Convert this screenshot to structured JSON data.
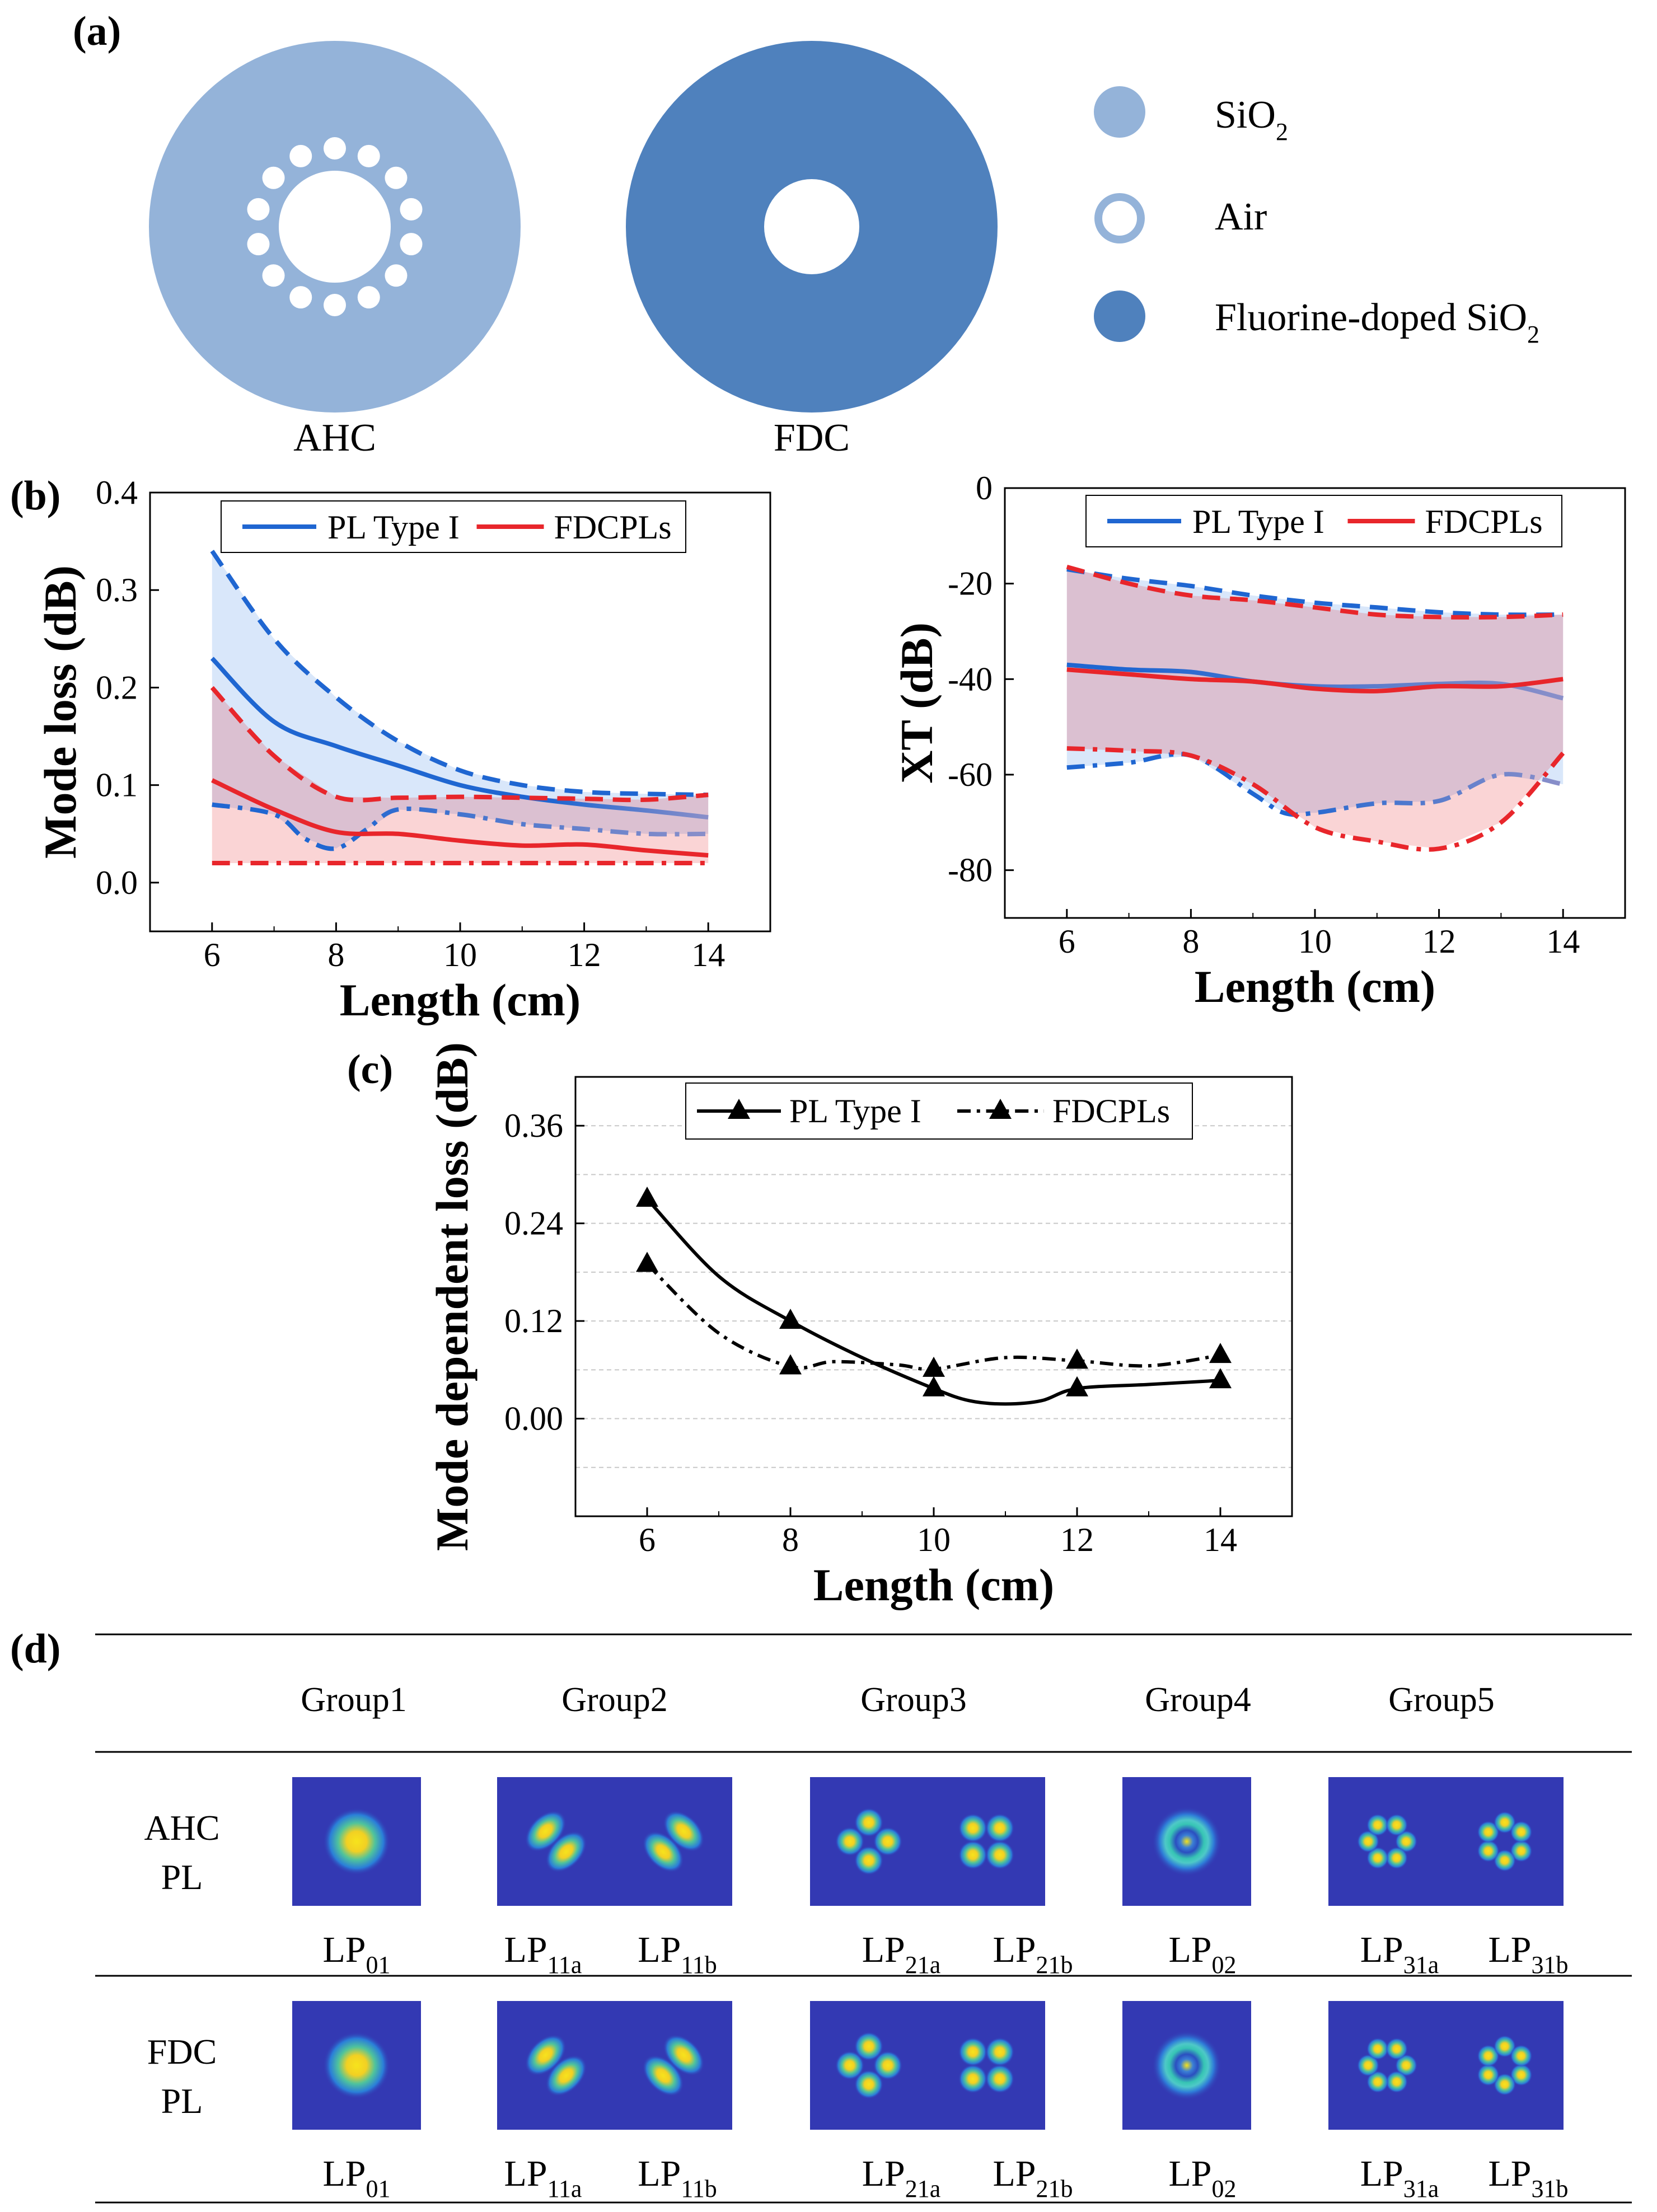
{
  "panel_labels": {
    "a": "(a)",
    "b": "(b)",
    "c": "(c)",
    "d": "(d)"
  },
  "panel_a": {
    "ahc_label": "AHC",
    "fdc_label": "FDC",
    "legend": [
      {
        "label": "SiO",
        "sub": "2",
        "color": "#94b3d9",
        "style": "filled"
      },
      {
        "label": "Air",
        "sub": "",
        "color": "#94b3d9",
        "style": "ring"
      },
      {
        "label": "Fluorine-doped SiO",
        "sub": "2",
        "color": "#4f81bd",
        "style": "filled"
      }
    ],
    "colors": {
      "sio2": "#94b3d9",
      "fdc": "#4f81bd",
      "air": "#ffffff"
    }
  },
  "chart_data": [
    {
      "id": "b-left",
      "type": "line",
      "title": "",
      "xlabel": "Length (cm)",
      "ylabel": "Mode loss (dB)",
      "xlim": [
        5,
        15
      ],
      "ylim": [
        -0.05,
        0.4
      ],
      "xticks": [
        6,
        8,
        10,
        12,
        14
      ],
      "yticks": [
        0.0,
        0.1,
        0.2,
        0.3,
        0.4
      ],
      "ytick_labels": [
        "0.0",
        "0.1",
        "0.2",
        "0.3",
        "0.4"
      ],
      "legend": [
        "PL Type I",
        "FDCPLs"
      ],
      "series": [
        {
          "name": "PL Type I max",
          "color": "#1f66d1",
          "dash": "dash",
          "x": [
            6,
            7,
            8,
            9,
            10,
            11,
            12,
            13,
            14
          ],
          "values": [
            0.34,
            0.25,
            0.19,
            0.145,
            0.115,
            0.1,
            0.093,
            0.091,
            0.09
          ]
        },
        {
          "name": "PL Type I mean",
          "color": "#1f66d1",
          "dash": "solid",
          "fade_to": "#8a8fc9",
          "fade_from": 11.5,
          "x": [
            6,
            7,
            8,
            9,
            10,
            11,
            12,
            13,
            14
          ],
          "values": [
            0.23,
            0.165,
            0.14,
            0.12,
            0.1,
            0.088,
            0.08,
            0.074,
            0.067
          ]
        },
        {
          "name": "PL Type I min",
          "color": "#1f66d1",
          "dash": "dashdot",
          "fade_to": "#8a8fc9",
          "fade_from": 8,
          "x": [
            6,
            7,
            7.5,
            8,
            8.5,
            9,
            10,
            11,
            12,
            13,
            14
          ],
          "values": [
            0.08,
            0.07,
            0.045,
            0.035,
            0.055,
            0.075,
            0.07,
            0.06,
            0.055,
            0.05,
            0.05
          ]
        },
        {
          "name": "FDCPLs max",
          "color": "#e8262b",
          "dash": "dash",
          "x": [
            6,
            7,
            8,
            9,
            10,
            11,
            12,
            13,
            14
          ],
          "values": [
            0.2,
            0.13,
            0.088,
            0.087,
            0.088,
            0.087,
            0.086,
            0.085,
            0.09
          ]
        },
        {
          "name": "FDCPLs mean",
          "color": "#e8262b",
          "dash": "solid",
          "x": [
            6,
            7,
            8,
            9,
            10,
            11,
            12,
            13,
            14
          ],
          "values": [
            0.105,
            0.075,
            0.052,
            0.05,
            0.043,
            0.038,
            0.039,
            0.033,
            0.028
          ]
        },
        {
          "name": "FDCPLs min",
          "color": "#e8262b",
          "dash": "dashdot",
          "x": [
            6,
            8,
            10,
            12,
            14
          ],
          "values": [
            0.02,
            0.02,
            0.02,
            0.02,
            0.02
          ]
        }
      ]
    },
    {
      "id": "b-right",
      "type": "line",
      "title": "",
      "xlabel": "Length (cm)",
      "ylabel": "XT (dB)",
      "xlim": [
        5,
        15
      ],
      "ylim": [
        -90,
        0
      ],
      "xticks": [
        6,
        8,
        10,
        12,
        14
      ],
      "yticks": [
        -80,
        -60,
        -40,
        -20,
        0
      ],
      "ytick_labels": [
        "-80",
        "-60",
        "-40",
        "-20",
        "0"
      ],
      "legend": [
        "PL Type I",
        "FDCPLs"
      ],
      "series": [
        {
          "name": "PL Type I max",
          "color": "#1f66d1",
          "dash": "dash",
          "x": [
            6,
            7,
            8,
            9,
            10,
            11,
            12,
            13,
            14
          ],
          "values": [
            -17,
            -19,
            -20.5,
            -22.5,
            -24,
            -25,
            -26,
            -26.5,
            -26.5
          ]
        },
        {
          "name": "PL Type I mean",
          "color": "#1f66d1",
          "dash": "solid",
          "fade_to": "#8a8fc9",
          "fade_from": 7,
          "x": [
            6,
            7,
            8,
            9,
            10,
            11,
            12,
            13,
            14
          ],
          "values": [
            -37,
            -38,
            -38.5,
            -40.5,
            -41.5,
            -41.5,
            -41,
            -41,
            -44
          ]
        },
        {
          "name": "PL Type I min",
          "color": "#1f66d1",
          "dash": "dashdot",
          "fade_to": "#8a8fc9",
          "fade_from": 9.5,
          "x": [
            6,
            7,
            8,
            9,
            9.5,
            10,
            11,
            12,
            13,
            14
          ],
          "values": [
            -58.5,
            -57.5,
            -56,
            -64,
            -68,
            -68,
            -66,
            -65.5,
            -60,
            -62
          ]
        },
        {
          "name": "FDCPLs max",
          "color": "#e8262b",
          "dash": "dash",
          "x": [
            6,
            7,
            8,
            9,
            10,
            11,
            12,
            13,
            14
          ],
          "values": [
            -16.5,
            -20,
            -22.5,
            -23.5,
            -25,
            -26.5,
            -27,
            -27,
            -26.5
          ]
        },
        {
          "name": "FDCPLs mean",
          "color": "#e8262b",
          "dash": "solid",
          "x": [
            6,
            7,
            8,
            9,
            10,
            11,
            12,
            13,
            14
          ],
          "values": [
            -38,
            -39,
            -40,
            -40.5,
            -42,
            -42.5,
            -41.5,
            -41.5,
            -40
          ]
        },
        {
          "name": "FDCPLs min",
          "color": "#e8262b",
          "dash": "dashdot",
          "x": [
            6,
            7,
            8,
            9,
            10,
            11,
            12,
            13,
            14
          ],
          "values": [
            -54.5,
            -55,
            -56,
            -62,
            -71,
            -74,
            -75.5,
            -70,
            -55.5
          ]
        }
      ]
    },
    {
      "id": "c",
      "type": "line",
      "title": "",
      "xlabel": "Length (cm)",
      "ylabel": "Mode dependent loss (dB)",
      "xlim": [
        5,
        15
      ],
      "ylim": [
        -0.12,
        0.42
      ],
      "xticks": [
        6,
        8,
        10,
        12,
        14
      ],
      "yticks": [
        0.0,
        0.12,
        0.24,
        0.36
      ],
      "ytick_labels": [
        "0.00",
        "0.12",
        "0.24",
        "0.36"
      ],
      "grid_y": [
        -0.12,
        -0.06,
        0.0,
        0.06,
        0.12,
        0.18,
        0.24,
        0.3,
        0.36
      ],
      "legend": [
        "PL Type I",
        "FDCPLs"
      ],
      "series": [
        {
          "name": "PL Type I",
          "color": "#000000",
          "dash": "solid",
          "marker": "triangle",
          "x": [
            6,
            8,
            10,
            12,
            14
          ],
          "values": [
            0.27,
            0.12,
            0.037,
            0.037,
            0.047
          ],
          "curve_x": [
            6,
            7,
            8,
            9,
            10,
            10.5,
            11,
            11.5,
            12,
            13,
            14
          ],
          "curve_values": [
            0.27,
            0.175,
            0.12,
            0.075,
            0.037,
            0.022,
            0.018,
            0.022,
            0.037,
            0.042,
            0.047
          ]
        },
        {
          "name": "FDCPLs",
          "color": "#000000",
          "dash": "dashdot",
          "marker": "triangle",
          "x": [
            6,
            8,
            10,
            12,
            14
          ],
          "values": [
            0.19,
            0.064,
            0.061,
            0.071,
            0.078
          ],
          "curve_x": [
            6,
            7,
            8,
            8.6,
            9.5,
            10,
            11,
            12,
            13,
            14
          ],
          "curve_values": [
            0.19,
            0.105,
            0.064,
            0.07,
            0.066,
            0.061,
            0.075,
            0.071,
            0.065,
            0.078
          ]
        }
      ]
    }
  ],
  "panel_d": {
    "groups": [
      "Group1",
      "Group2",
      "Group3",
      "Group4",
      "Group5"
    ],
    "rows": [
      {
        "label_line1": "AHC",
        "label_line2": "PL",
        "modes": [
          {
            "base": "LP",
            "sub": "01"
          },
          {
            "base": "LP",
            "sub": "11a"
          },
          {
            "base": "LP",
            "sub": "11b"
          },
          {
            "base": "LP",
            "sub": "21a"
          },
          {
            "base": "LP",
            "sub": "21b"
          },
          {
            "base": "LP",
            "sub": "02"
          },
          {
            "base": "LP",
            "sub": "31a"
          },
          {
            "base": "LP",
            "sub": "31b"
          }
        ]
      },
      {
        "label_line1": "FDC",
        "label_line2": "PL",
        "modes": [
          {
            "base": "LP",
            "sub": "01"
          },
          {
            "base": "LP",
            "sub": "11a"
          },
          {
            "base": "LP",
            "sub": "11b"
          },
          {
            "base": "LP",
            "sub": "21a"
          },
          {
            "base": "LP",
            "sub": "21b"
          },
          {
            "base": "LP",
            "sub": "02"
          },
          {
            "base": "LP",
            "sub": "31a"
          },
          {
            "base": "LP",
            "sub": "31b"
          }
        ]
      }
    ],
    "colors": {
      "background": "#3339b3",
      "hot": "#f4e21a"
    }
  }
}
